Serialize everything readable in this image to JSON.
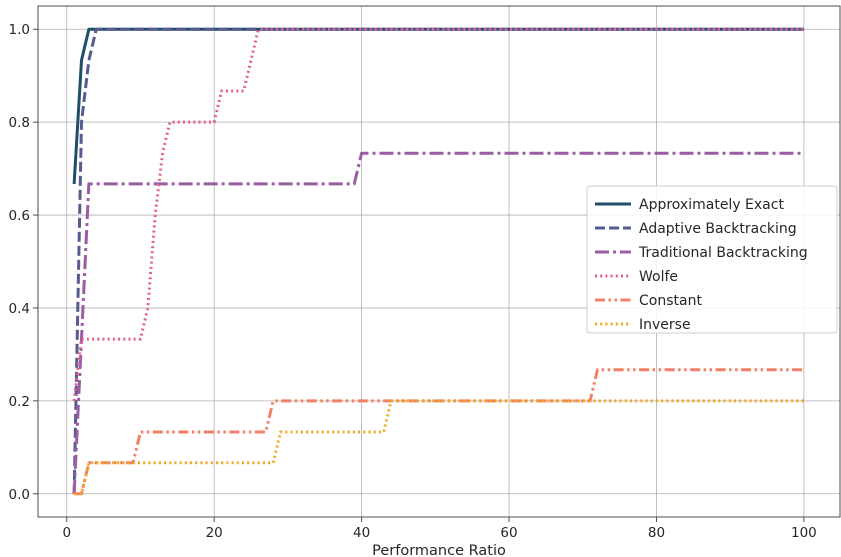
{
  "chart_data": {
    "type": "line",
    "title": "",
    "xlabel": "Performance Ratio",
    "ylabel": "",
    "xlim": [
      -3.9,
      104.9
    ],
    "ylim": [
      -0.05,
      1.05
    ],
    "xticks": [
      0,
      20,
      40,
      60,
      80,
      100
    ],
    "yticks": [
      0.0,
      0.2,
      0.4,
      0.6,
      0.8,
      1.0
    ],
    "xtick_labels": [
      "0",
      "20",
      "40",
      "60",
      "80",
      "100"
    ],
    "ytick_labels": [
      "0.0",
      "0.2",
      "0.4",
      "0.6",
      "0.8",
      "1.0"
    ],
    "grid": true,
    "legend_position": "center-right",
    "series": [
      {
        "name": "Approximately Exact",
        "color": "#1f4e6a",
        "style": "solid",
        "points": [
          [
            1,
            0.667
          ],
          [
            2,
            0.933
          ],
          [
            3,
            1.0
          ],
          [
            100,
            1.0
          ]
        ]
      },
      {
        "name": "Adaptive Backtracking",
        "color": "#575c8f",
        "style": "dashed",
        "points": [
          [
            1,
            0.0
          ],
          [
            1.5,
            0.4
          ],
          [
            2,
            0.8
          ],
          [
            3,
            0.933
          ],
          [
            4,
            1.0
          ],
          [
            100,
            1.0
          ]
        ]
      },
      {
        "name": "Traditional Backtracking",
        "color": "#9b5ba5",
        "style": "dashdot",
        "points": [
          [
            1,
            0.0
          ],
          [
            2,
            0.333
          ],
          [
            3,
            0.667
          ],
          [
            39,
            0.667
          ],
          [
            40,
            0.733
          ],
          [
            100,
            0.733
          ]
        ]
      },
      {
        "name": "Wolfe",
        "color": "#e0628f",
        "style": "dotted",
        "points": [
          [
            1,
            0.2
          ],
          [
            2,
            0.333
          ],
          [
            10,
            0.333
          ],
          [
            11,
            0.4
          ],
          [
            12,
            0.6
          ],
          [
            13,
            0.733
          ],
          [
            14,
            0.8
          ],
          [
            20,
            0.8
          ],
          [
            21,
            0.867
          ],
          [
            22,
            0.867
          ],
          [
            23,
            0.867
          ],
          [
            24,
            0.867
          ],
          [
            25,
            0.933
          ],
          [
            26,
            1.0
          ],
          [
            100,
            1.0
          ]
        ]
      },
      {
        "name": "Constant",
        "color": "#f37f66",
        "style": "dashdotdot",
        "points": [
          [
            1,
            0.0
          ],
          [
            2,
            0.0
          ],
          [
            3,
            0.0667
          ],
          [
            9,
            0.0667
          ],
          [
            10,
            0.133
          ],
          [
            27,
            0.133
          ],
          [
            28,
            0.2
          ],
          [
            71,
            0.2
          ],
          [
            72,
            0.267
          ],
          [
            100,
            0.267
          ]
        ]
      },
      {
        "name": "Inverse",
        "color": "#f0a81e",
        "style": "dotted",
        "points": [
          [
            1,
            0.0
          ],
          [
            2,
            0.0
          ],
          [
            3,
            0.0667
          ],
          [
            28,
            0.0667
          ],
          [
            29,
            0.133
          ],
          [
            43,
            0.133
          ],
          [
            44,
            0.2
          ],
          [
            100,
            0.2
          ]
        ]
      }
    ]
  }
}
